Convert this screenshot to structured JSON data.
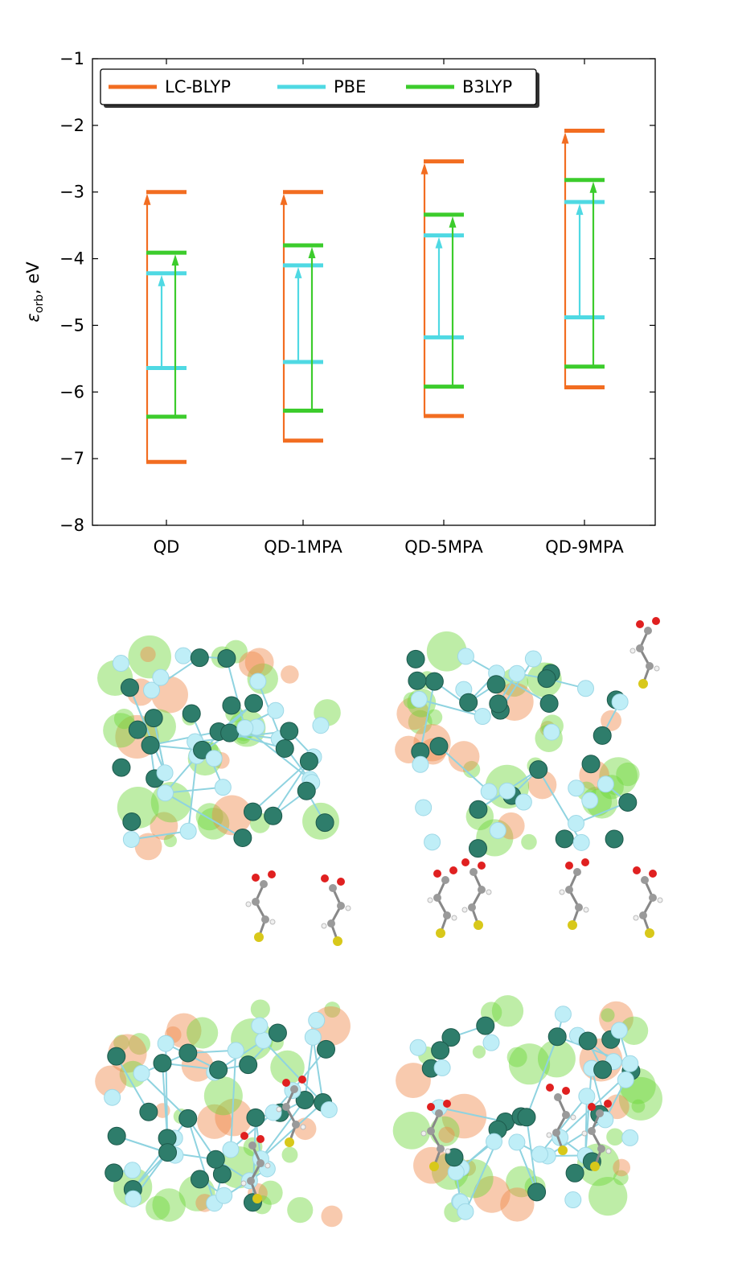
{
  "chart_data": {
    "type": "energy-level diagram",
    "ylabel_symbol": "ε",
    "ylabel_sub": "orb",
    "ylabel_unit": ", eV",
    "ylim": [
      -8,
      -1
    ],
    "yticks": [
      -1,
      -2,
      -3,
      -4,
      -5,
      -6,
      -7,
      -8
    ],
    "ytick_labels": [
      "−1",
      "−2",
      "−3",
      "−4",
      "−5",
      "−6",
      "−7",
      "−8"
    ],
    "categories": [
      "QD",
      "QD-1MPA",
      "QD-5MPA",
      "QD-9MPA"
    ],
    "legend": {
      "placement": "top-left"
    },
    "series": [
      {
        "name": "LC-BLYP",
        "color": "#f26d21",
        "homo": [
          -7.05,
          -6.73,
          -6.36,
          -5.93
        ],
        "lumo": [
          -3.0,
          -3.0,
          -2.54,
          -2.08
        ]
      },
      {
        "name": "PBE",
        "color": "#4fd9e3",
        "homo": [
          -5.64,
          -5.55,
          -5.18,
          -4.88
        ],
        "lumo": [
          -4.22,
          -4.1,
          -3.65,
          -3.15
        ]
      },
      {
        "name": "B3LYP",
        "color": "#3ccc2c",
        "homo": [
          -6.37,
          -6.28,
          -5.92,
          -5.62
        ],
        "lumo": [
          -3.91,
          -3.8,
          -3.34,
          -2.82
        ]
      }
    ]
  },
  "colors": {
    "zn_atom": "#2e7d6b",
    "s_atom_cluster": "#bfeef7",
    "iso_positive": "#6fd63c",
    "iso_negative": "#f08a4b",
    "oxygen": "#e02020",
    "carbon": "#9a9a9a",
    "hydrogen": "#f0f0f0",
    "sulfur_ligand": "#d8c81a"
  }
}
